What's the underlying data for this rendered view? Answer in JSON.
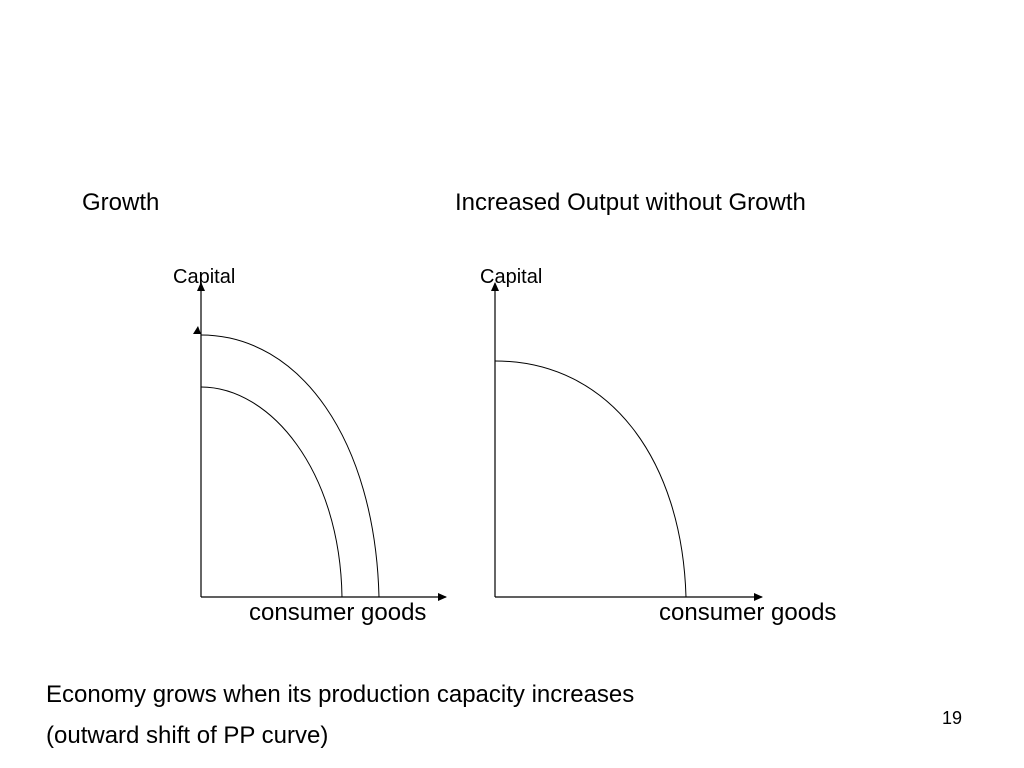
{
  "slide": {
    "left_title": "Growth",
    "right_title": "Increased Output without Growth",
    "caption_line1": "Economy grows when its production capacity increases",
    "caption_line2": "(outward shift of PP curve)",
    "page_number": "19"
  },
  "left_diagram": {
    "y_axis_label": "Capital",
    "x_axis_label": "consumer goods",
    "curves": [
      "original-ppf",
      "shifted-outward-ppf"
    ]
  },
  "right_diagram": {
    "y_axis_label": "Capital",
    "x_axis_label": "consumer goods",
    "curves": [
      "ppf"
    ]
  },
  "colors": {
    "background": "#ffffff",
    "ink": "#000000"
  }
}
